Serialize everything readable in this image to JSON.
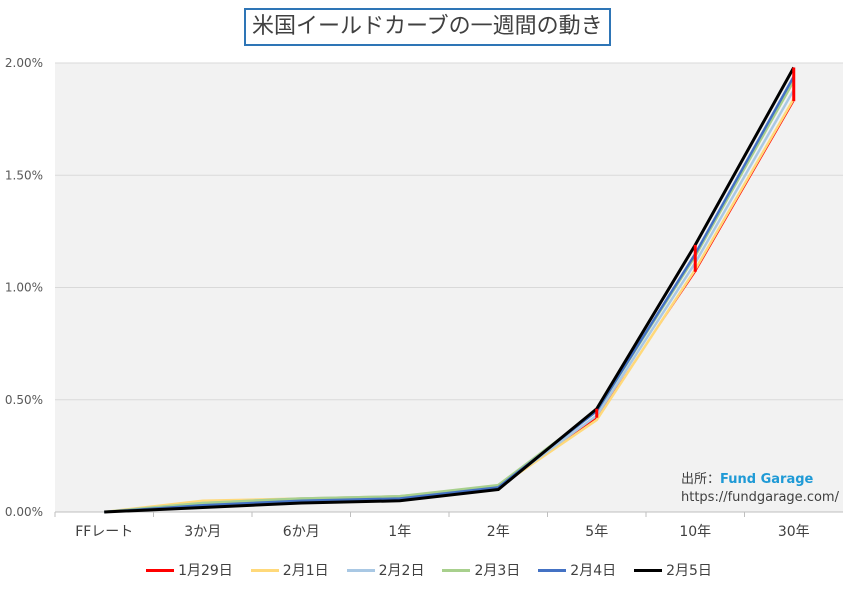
{
  "chart_data": {
    "type": "line",
    "title": "米国イールドカーブの一週間の動き",
    "categories": [
      "FFレート",
      "3か月",
      "6か月",
      "1年",
      "2年",
      "5年",
      "10年",
      "30年"
    ],
    "ylim": [
      0,
      2.0
    ],
    "yticks": [
      "0.00%",
      "0.50%",
      "1.00%",
      "1.50%",
      "2.00%"
    ],
    "ytick_values": [
      0,
      0.5,
      1.0,
      1.5,
      2.0
    ],
    "grid": true,
    "legend_position": "bottom",
    "series": [
      {
        "name": "1月29日",
        "color": "#ff0000",
        "values": [
          0,
          0.05,
          0.06,
          0.07,
          0.11,
          0.42,
          1.07,
          1.83
        ]
      },
      {
        "name": "2月1日",
        "color": "#ffd97a",
        "values": [
          0,
          0.05,
          0.06,
          0.07,
          0.11,
          0.41,
          1.08,
          1.84
        ]
      },
      {
        "name": "2月2日",
        "color": "#a9c8e4",
        "values": [
          0,
          0.04,
          0.06,
          0.07,
          0.11,
          0.43,
          1.11,
          1.88
        ]
      },
      {
        "name": "2月3日",
        "color": "#a8d08d",
        "values": [
          0,
          0.04,
          0.06,
          0.07,
          0.12,
          0.45,
          1.14,
          1.92
        ]
      },
      {
        "name": "2月4日",
        "color": "#4472c4",
        "values": [
          0,
          0.03,
          0.05,
          0.06,
          0.11,
          0.45,
          1.15,
          1.94
        ]
      },
      {
        "name": "2月5日",
        "color": "#000000",
        "values": [
          0,
          0.02,
          0.04,
          0.05,
          0.1,
          0.46,
          1.19,
          1.98
        ]
      }
    ],
    "change_markers": [
      5,
      6,
      7
    ],
    "marker_color": "#ff0000"
  },
  "source": {
    "label": "出所：",
    "name": "Fund Garage",
    "url": "https://fundgarage.com/"
  }
}
